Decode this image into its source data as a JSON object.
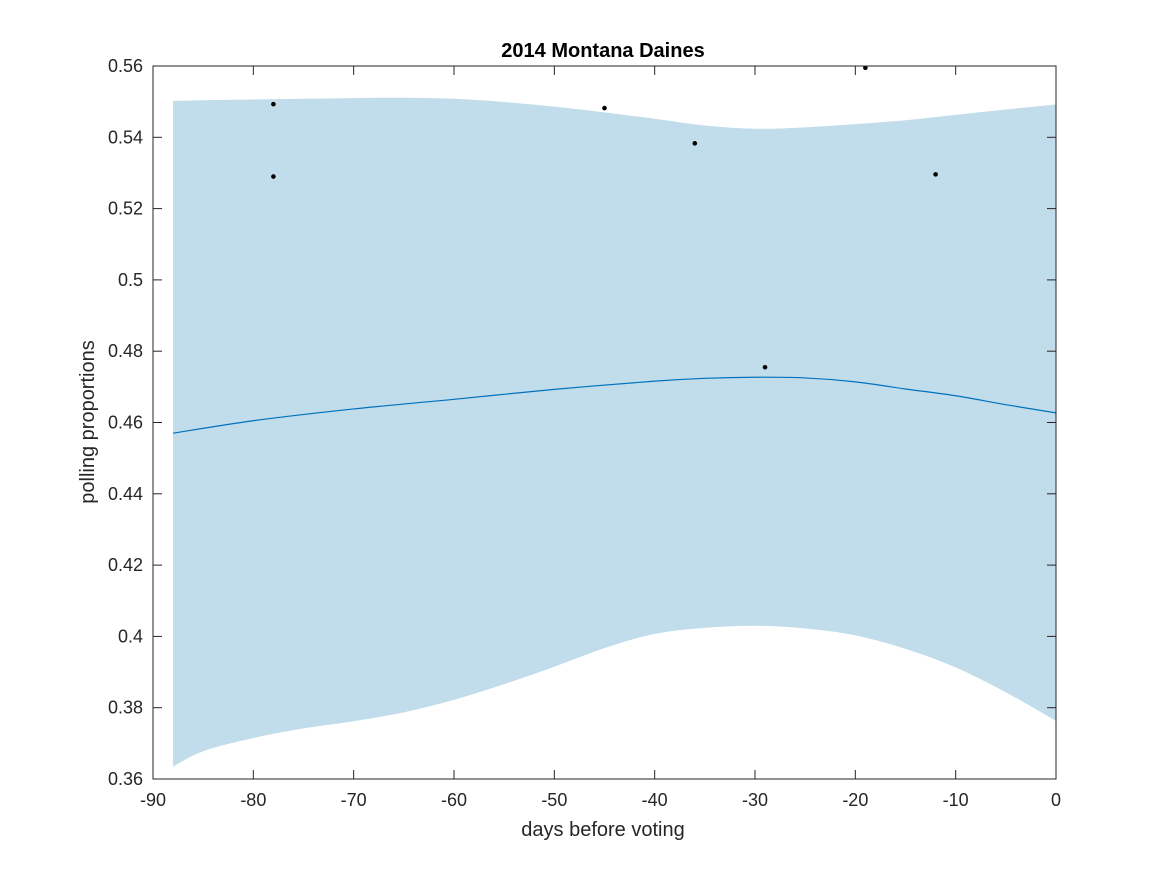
{
  "chart_data": {
    "type": "line",
    "title": "2014 Montana Daines",
    "xlabel": "days before voting",
    "ylabel": "polling proportions",
    "xlim": [
      -90,
      0
    ],
    "ylim": [
      0.36,
      0.56
    ],
    "xticks": [
      -90,
      -80,
      -70,
      -60,
      -50,
      -40,
      -30,
      -20,
      -10,
      0
    ],
    "xtick_labels": [
      "-90",
      "-80",
      "-70",
      "-60",
      "-50",
      "-40",
      "-30",
      "-20",
      "-10",
      "0"
    ],
    "yticks": [
      0.36,
      0.38,
      0.4,
      0.42,
      0.44,
      0.46,
      0.48,
      0.5,
      0.52,
      0.54,
      0.56
    ],
    "ytick_labels": [
      "0.36",
      "0.38",
      "0.4",
      "0.42",
      "0.44",
      "0.46",
      "0.48",
      "0.5",
      "0.52",
      "0.54",
      "0.56"
    ],
    "grid": false,
    "colors": {
      "band": "#c1dcea",
      "line": "#0072bd",
      "points": "#000000",
      "axes": "#262626"
    },
    "series": [
      {
        "name": "mean",
        "kind": "line",
        "x": [
          -88,
          -80,
          -70,
          -60,
          -50,
          -40,
          -35,
          -30,
          -25,
          -20,
          -15,
          -10,
          -5,
          0
        ],
        "y": [
          0.457,
          0.4605,
          0.4638,
          0.4665,
          0.4693,
          0.4716,
          0.4724,
          0.4727,
          0.4725,
          0.4714,
          0.4694,
          0.4675,
          0.465,
          0.4627
        ]
      },
      {
        "name": "confidence band",
        "kind": "area",
        "x": [
          -88,
          -85,
          -80,
          -75,
          -70,
          -65,
          -60,
          -55,
          -50,
          -45,
          -40,
          -35,
          -30,
          -25,
          -20,
          -15,
          -10,
          -5,
          0
        ],
        "upper": [
          0.5502,
          0.5504,
          0.5506,
          0.5508,
          0.551,
          0.5511,
          0.5508,
          0.5499,
          0.5486,
          0.547,
          0.5452,
          0.5433,
          0.5424,
          0.5428,
          0.5437,
          0.5448,
          0.5463,
          0.5478,
          0.5492
        ],
        "lower": [
          0.3635,
          0.3678,
          0.3715,
          0.3742,
          0.3762,
          0.3787,
          0.3822,
          0.3866,
          0.3915,
          0.3967,
          0.4007,
          0.4024,
          0.403,
          0.4022,
          0.4003,
          0.3965,
          0.3913,
          0.3843,
          0.3763
        ]
      },
      {
        "name": "polls",
        "kind": "scatter",
        "x": [
          -78,
          -78,
          -45,
          -36,
          -29,
          -19,
          -12
        ],
        "y": [
          0.5493,
          0.529,
          0.5482,
          0.5383,
          0.4755,
          0.5595,
          0.5296
        ]
      }
    ]
  }
}
